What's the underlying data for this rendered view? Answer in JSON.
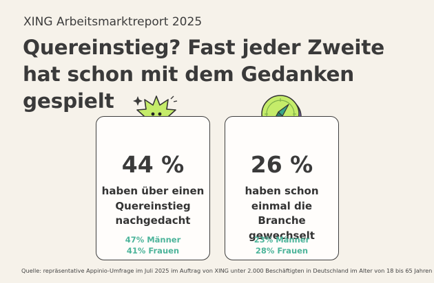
{
  "header": {
    "subtitle": "XING Arbeitsmarktreport 2025",
    "headline": "Quereinstieg? Fast jeder Zweite hat schon mit dem Gedanken gespielt"
  },
  "cards": [
    {
      "stat": "44 %",
      "description": "haben über einen Quereinstieg nachgedacht",
      "men": "47% Männer",
      "women": "41% Frauen",
      "icon": "spiky-star-face-icon"
    },
    {
      "stat": "26 %",
      "description": "haben schon einmal die Branche gewechselt",
      "men": "23% Männer",
      "women": "28% Frauen",
      "icon": "compass-icon"
    }
  ],
  "footer": {
    "source": "Quelle: repräsentative Appinio-Umfrage im Juli 2025 im Auftrag von XING unter 2.000 Beschäftigten in Deutschland im Alter von 18 bis 65 Jahren"
  },
  "colors": {
    "background": "#f6f2ea",
    "accent_green": "#4cb49a",
    "lime": "#c5ec6a",
    "purple": "#8b6cc9"
  }
}
